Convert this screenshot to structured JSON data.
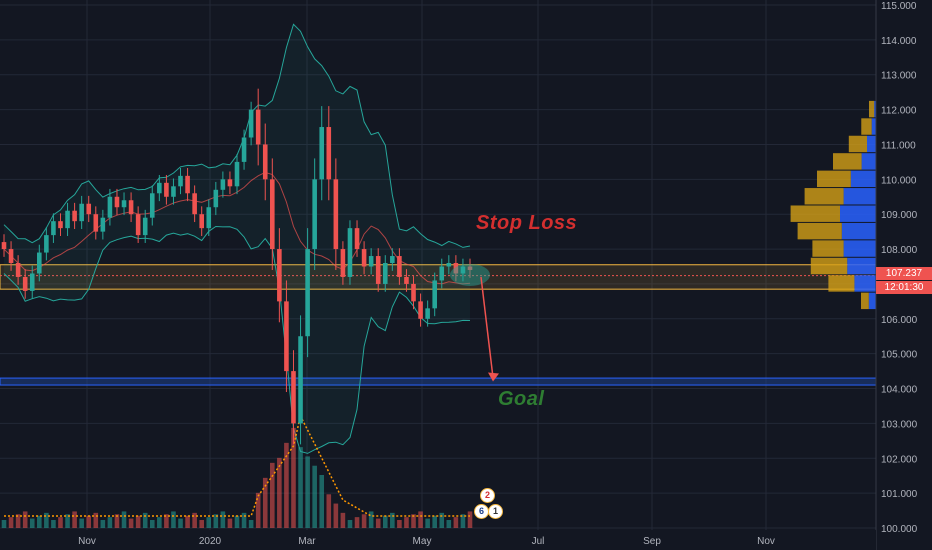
{
  "annotations": {
    "stop_loss_label": "Stop Loss",
    "goal_label": "Goal",
    "stop_loss_color": "#d32f2f",
    "goal_color": "#2e7d32"
  },
  "price_tags": {
    "last_price": "107.237",
    "countdown": "12:01:30",
    "tag_color": "#ef5350"
  },
  "event_badges": {
    "jp_flag_count": "2",
    "us_flag_count": "6",
    "extra_count": "1"
  },
  "colors": {
    "background": "#131722",
    "grid": "#232837",
    "axis_text": "#b2b5be",
    "up_candle": "#26a69a",
    "down_candle": "#ef5350",
    "bollinger": "#26a69a",
    "stop_zone": "#f5b841",
    "goal_zone": "#1e3f8a",
    "volume_profile_buy": "#2962ff",
    "volume_profile_sell": "#d4a017",
    "volume_ma": "#ff9800"
  },
  "chart_data": {
    "type": "candlestick",
    "instrument_hint": "price chart with Bollinger Bands, volume and volume profile",
    "x_axis": {
      "tick_labels": [
        "Nov",
        "2020",
        "Mar",
        "May",
        "Jul",
        "Sep",
        "Nov"
      ]
    },
    "y_axis": {
      "tick_labels": [
        "115.000",
        "114.000",
        "113.000",
        "112.000",
        "111.000",
        "110.000",
        "109.000",
        "108.000",
        "107.000",
        "106.000",
        "105.000",
        "104.000",
        "103.000",
        "102.000",
        "101.000",
        "100.000"
      ],
      "range": [
        100.0,
        115.0
      ]
    },
    "closes_approx": [
      108.0,
      107.6,
      107.2,
      106.8,
      107.3,
      107.9,
      108.4,
      108.8,
      108.6,
      109.1,
      108.8,
      109.3,
      109.0,
      108.5,
      108.9,
      109.5,
      109.2,
      109.4,
      109.0,
      108.4,
      108.9,
      109.6,
      109.9,
      109.5,
      109.8,
      110.1,
      109.6,
      109.0,
      108.6,
      109.2,
      109.7,
      110.0,
      109.8,
      110.5,
      111.2,
      112.0,
      111.0,
      110.0,
      108.0,
      106.5,
      104.5,
      103.0,
      105.5,
      108.0,
      110.0,
      111.5,
      110.0,
      108.0,
      107.2,
      108.6,
      108.0,
      107.5,
      107.8,
      107.0,
      107.6,
      107.8,
      107.2,
      107.0,
      106.5,
      106.0,
      106.3,
      107.1,
      107.5,
      107.6,
      107.3,
      107.5,
      107.4
    ],
    "levels": {
      "current_price": 107.237,
      "stop_loss_zone": [
        106.85,
        107.55
      ],
      "goal_zone": [
        104.1,
        104.3
      ]
    },
    "arrow": {
      "from_price": 107.2,
      "to_price": 104.2,
      "direction": "down"
    },
    "volume_profile_price_levels": [
      112.0,
      111.5,
      111.0,
      110.5,
      110.0,
      109.5,
      109.0,
      108.5,
      108.0,
      107.5,
      107.0,
      106.5
    ],
    "volume_profile_buy": [
      0.05,
      0.12,
      0.25,
      0.4,
      0.7,
      0.9,
      1.0,
      0.95,
      0.9,
      0.8,
      0.6,
      0.2
    ],
    "volume_profile_sell": [
      0.1,
      0.2,
      0.35,
      0.55,
      0.65,
      0.75,
      0.95,
      0.85,
      0.6,
      0.7,
      0.5,
      0.15
    ]
  }
}
